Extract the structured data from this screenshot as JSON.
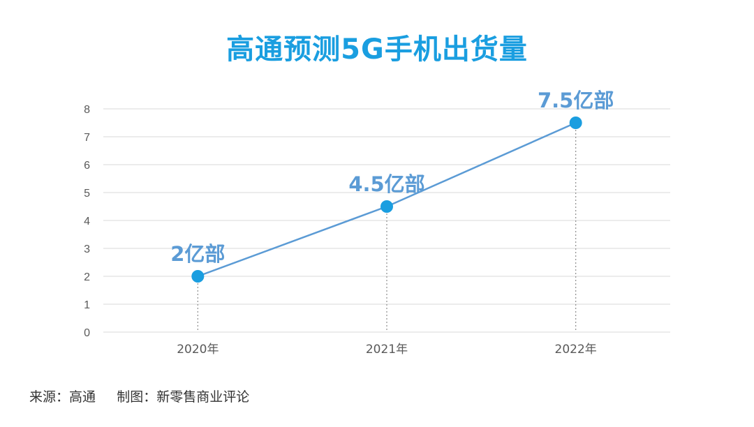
{
  "chart_data": {
    "type": "line",
    "title": "高通预测5G手机出货量",
    "categories": [
      "2020年",
      "2021年",
      "2022年"
    ],
    "series": [
      {
        "values": [
          2,
          4.5,
          7.5
        ]
      }
    ],
    "data_labels": [
      "2亿部",
      "4.5亿部",
      "7.5亿部"
    ],
    "y_ticks": [
      "0",
      "1",
      "2",
      "3",
      "4",
      "5",
      "6",
      "7",
      "8"
    ],
    "ylim": [
      0,
      8
    ],
    "grid": true,
    "legend": "none",
    "colors": {
      "title": "#1a9ee0",
      "line": "#5b9bd5",
      "marker": "#1a9ee0",
      "data_label": "#5b9bd5",
      "grid": "#d9d9d9",
      "tick_text": "#595959"
    }
  },
  "footer": {
    "text": "来源：高通     制图：新零售商业评论"
  }
}
